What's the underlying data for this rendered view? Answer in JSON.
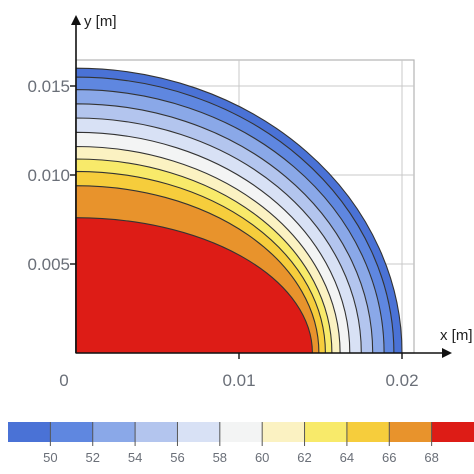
{
  "chart_data": {
    "type": "heatmap",
    "subtype": "filled-contour-quarter-ellipse",
    "xlabel": "x [m]",
    "ylabel": "y [m]",
    "xlim": [
      0,
      0.022
    ],
    "ylim": [
      0,
      0.0165
    ],
    "x_ticks": [
      {
        "value": 0,
        "label": "0"
      },
      {
        "value": 0.01,
        "label": "0.01"
      },
      {
        "value": 0.02,
        "label": "0.02"
      }
    ],
    "y_ticks": [
      {
        "value": 0.005,
        "label": "0.005"
      },
      {
        "value": 0.01,
        "label": "0.010"
      },
      {
        "value": 0.015,
        "label": "0.015"
      }
    ],
    "grid": true,
    "grid_lines_x": [
      0.01,
      0.02
    ],
    "grid_lines_y": [
      0.005,
      0.01,
      0.015
    ],
    "contour_levels_outer_to_inner": [
      {
        "value": 49,
        "rx": 0.02,
        "ry": 0.016,
        "color": "#4a72d6"
      },
      {
        "value": 51,
        "rx": 0.0195,
        "ry": 0.0155,
        "color": "#5f87e0"
      },
      {
        "value": 53,
        "rx": 0.0189,
        "ry": 0.0148,
        "color": "#8aa8e8"
      },
      {
        "value": 55,
        "rx": 0.0182,
        "ry": 0.014,
        "color": "#b3c5ee"
      },
      {
        "value": 57,
        "rx": 0.0175,
        "ry": 0.0132,
        "color": "#d8e1f5"
      },
      {
        "value": 59,
        "rx": 0.0168,
        "ry": 0.0124,
        "color": "#f3f4f4"
      },
      {
        "value": 61,
        "rx": 0.0162,
        "ry": 0.0116,
        "color": "#fbf2c2"
      },
      {
        "value": 63,
        "rx": 0.0157,
        "ry": 0.0109,
        "color": "#f8ea6a"
      },
      {
        "value": 65,
        "rx": 0.0153,
        "ry": 0.0102,
        "color": "#f6cd3c"
      },
      {
        "value": 67,
        "rx": 0.0149,
        "ry": 0.0094,
        "color": "#e8932c"
      },
      {
        "value": 69,
        "rx": 0.0145,
        "ry": 0.0076,
        "color": "#dd1c16"
      }
    ],
    "colorbar": {
      "colors": [
        "#4a72d6",
        "#5f87e0",
        "#8aa8e8",
        "#b3c5ee",
        "#d8e1f5",
        "#f3f4f4",
        "#fbf2c2",
        "#f8ea6a",
        "#f6cd3c",
        "#e8932c",
        "#dd1c16"
      ],
      "ticks": [
        "50",
        "52",
        "54",
        "56",
        "58",
        "60",
        "62",
        "64",
        "66",
        "68"
      ]
    },
    "background_color": "#ffffff",
    "frame_color": "#b4b4b4",
    "contour_stroke_color": "#333333"
  }
}
